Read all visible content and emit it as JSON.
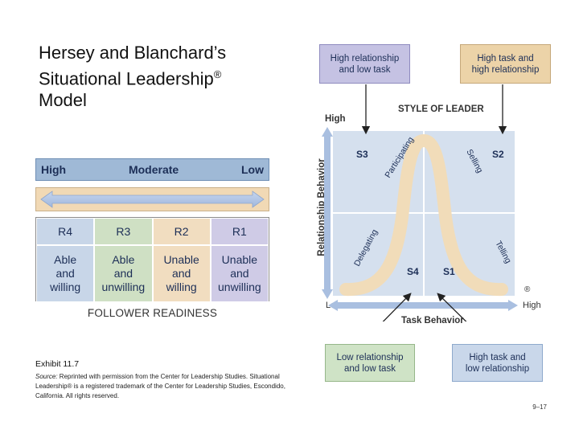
{
  "title": {
    "line1": "Hersey and Blanchard’s",
    "line2": "Situational Leadership",
    "reg": "®",
    "line3": "Model"
  },
  "readiness": {
    "header": {
      "high": "High",
      "moderate": "Moderate",
      "low": "Low"
    },
    "columns": [
      {
        "code": "R4",
        "description": "Able\nand\nwilling"
      },
      {
        "code": "R3",
        "description": "Able\nand\nunwilling"
      },
      {
        "code": "R2",
        "description": "Unable\nand\nwilling"
      },
      {
        "code": "R1",
        "description": "Unable\nand\nunwilling"
      }
    ],
    "label": "FOLLOWER READINESS"
  },
  "exhibit": "Exhibit 11.7",
  "source": {
    "prefix": "Source:",
    "text": " Reprinted with permission from the Center for Leadership Studies. Situational Leadership® is a registered trademark of the Center for Leadership Studies, Escondido, California. All rights reserved."
  },
  "page_number": "9–17",
  "style_diagram": {
    "top_left_box": "High relationship\nand low task",
    "top_right_box": "High task and\nhigh relationship",
    "bottom_left_box": "Low relationship\nand low task",
    "bottom_right_box": "High task and\nlow relationship",
    "style_of_leader": "STYLE OF LEADER",
    "y_axis_label": "Relationship Behavior",
    "x_axis_label": "Task Behavior",
    "y_high": "High",
    "x_low": "Low",
    "x_high": "High",
    "reg_mark": "®",
    "quadrants": {
      "s1": "S1",
      "s2": "S2",
      "s3": "S3",
      "s4": "S4"
    },
    "curve_labels": {
      "participating": "Participating",
      "selling": "Selling",
      "delegating": "Delegating",
      "telling": "Telling"
    }
  },
  "colors": {
    "purple": "#c5c2e3",
    "tan": "#ecd3a8",
    "green": "#cfe3c6",
    "blue": "#c9d7ea",
    "axis": "#a9bfe0",
    "curve": "#f1dcb9"
  }
}
